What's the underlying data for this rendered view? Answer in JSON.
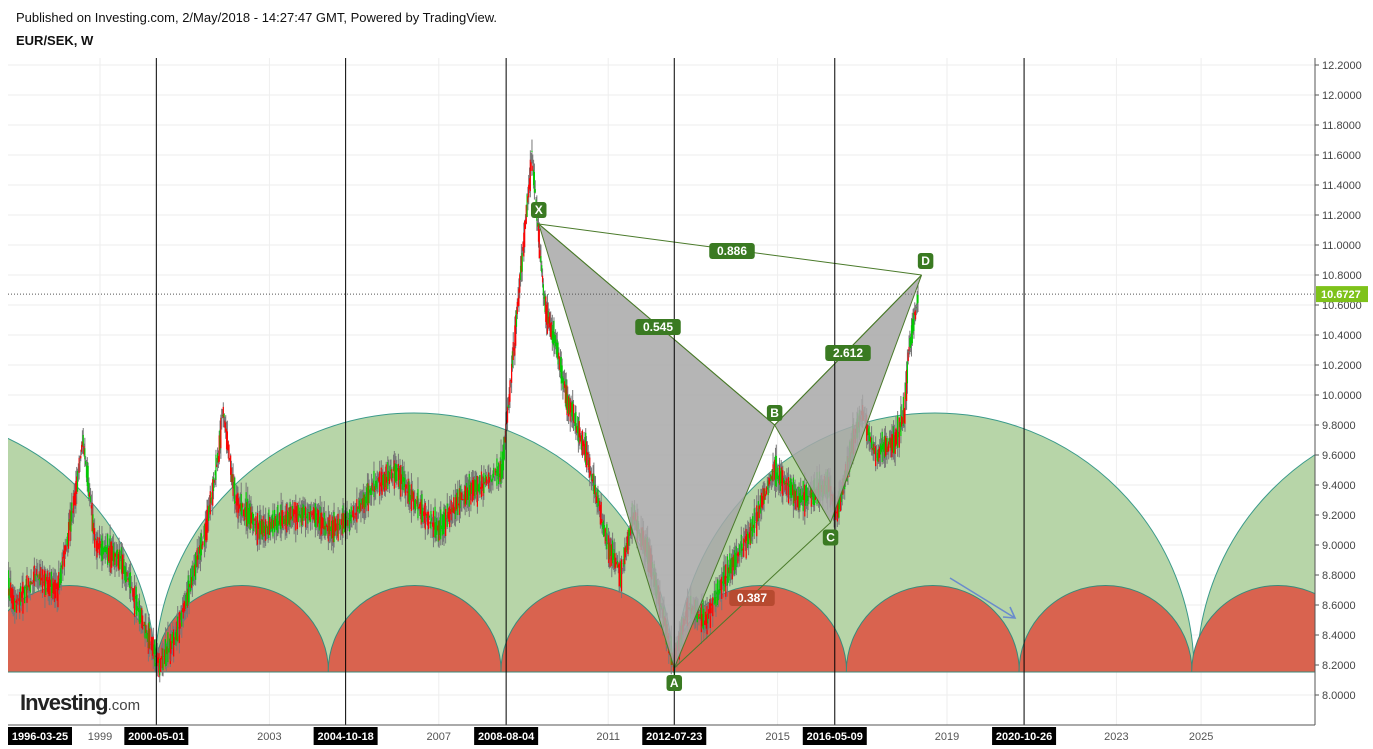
{
  "header": {
    "published": "Published on Investing.com, 2/May/2018 - 14:27:47 GMT, Powered by TradingView.",
    "symbol": "EUR/SEK, W"
  },
  "logo": {
    "main": "Investing",
    "suffix": ".com"
  },
  "colors": {
    "up": "#00cc00",
    "down": "#ff0000",
    "wick": "#777777",
    "green_arc": "#b3d3a3",
    "red_arc": "#d9634f",
    "pattern": "#a8a8a8",
    "label": "#3a7a22",
    "label_red": "#b0452a"
  },
  "chart_data": {
    "type": "candlestick",
    "title": "EUR/SEK, W",
    "ylim": [
      7.9,
      12.25
    ],
    "y_ticks": [
      "12.2000",
      "12.0000",
      "11.8000",
      "11.6000",
      "11.4000",
      "11.2000",
      "11.0000",
      "10.8000",
      "10.6000",
      "10.4000",
      "10.2000",
      "10.0000",
      "9.8000",
      "9.6000",
      "9.4000",
      "9.2000",
      "9.0000",
      "8.8000",
      "8.6000",
      "8.4000",
      "8.2000",
      "8.0000"
    ],
    "x_ticks": [
      {
        "label": "1999",
        "year": 1999
      },
      {
        "label": "2003",
        "year": 2003
      },
      {
        "label": "2007",
        "year": 2007
      },
      {
        "label": "2011",
        "year": 2011
      },
      {
        "label": "2015",
        "year": 2015
      },
      {
        "label": "2019",
        "year": 2019
      },
      {
        "label": "2023",
        "year": 2023
      },
      {
        "label": "2025",
        "year": 2025
      }
    ],
    "cycle_dates": [
      {
        "label": "1996-03-25",
        "year": 1996.23,
        "line": false
      },
      {
        "label": "2000-05-01",
        "year": 2000.33,
        "line": true
      },
      {
        "label": "2004-10-18",
        "year": 2004.8,
        "line": true
      },
      {
        "label": "2008-08-04",
        "year": 2008.59,
        "line": true
      },
      {
        "label": "2012-07-23",
        "year": 2012.56,
        "line": true
      },
      {
        "label": "2016-05-09",
        "year": 2016.35,
        "line": true
      },
      {
        "label": "2020-10-26",
        "year": 2020.82,
        "line": true
      }
    ],
    "last_price": {
      "value": 10.6727,
      "label": "10.6727"
    },
    "price_path": [
      [
        1996.2,
        8.5
      ],
      [
        1996.6,
        8.9
      ],
      [
        1997,
        8.6
      ],
      [
        1997.5,
        8.8
      ],
      [
        1998,
        8.7
      ],
      [
        1998.4,
        9.3
      ],
      [
        1998.6,
        9.7
      ],
      [
        1998.9,
        9.0
      ],
      [
        1999.5,
        8.9
      ],
      [
        2000,
        8.5
      ],
      [
        2000.4,
        8.2
      ],
      [
        2000.8,
        8.4
      ],
      [
        2001.5,
        9.1
      ],
      [
        2001.8,
        9.6
      ],
      [
        2001.9,
        9.9
      ],
      [
        2002.2,
        9.3
      ],
      [
        2002.8,
        9.1
      ],
      [
        2003.5,
        9.2
      ],
      [
        2004,
        9.2
      ],
      [
        2004.5,
        9.1
      ],
      [
        2005,
        9.2
      ],
      [
        2005.5,
        9.4
      ],
      [
        2006,
        9.5
      ],
      [
        2006.4,
        9.3
      ],
      [
        2007,
        9.1
      ],
      [
        2007.5,
        9.3
      ],
      [
        2008,
        9.4
      ],
      [
        2008.5,
        9.5
      ],
      [
        2008.8,
        10.4
      ],
      [
        2009,
        11.0
      ],
      [
        2009.2,
        11.6
      ],
      [
        2009.5,
        10.6
      ],
      [
        2009.8,
        10.3
      ],
      [
        2010,
        10.0
      ],
      [
        2010.5,
        9.6
      ],
      [
        2011,
        9.0
      ],
      [
        2011.3,
        8.8
      ],
      [
        2011.6,
        9.2
      ],
      [
        2012,
        8.9
      ],
      [
        2012.55,
        8.2
      ],
      [
        2012.9,
        8.6
      ],
      [
        2013.3,
        8.5
      ],
      [
        2013.8,
        8.8
      ],
      [
        2014.4,
        9.1
      ],
      [
        2014.9,
        9.5
      ],
      [
        2015.5,
        9.3
      ],
      [
        2016.2,
        9.4
      ],
      [
        2016.4,
        9.2
      ],
      [
        2016.8,
        9.7
      ],
      [
        2017,
        9.9
      ],
      [
        2017.3,
        9.6
      ],
      [
        2017.8,
        9.7
      ],
      [
        2018,
        9.9
      ],
      [
        2018.1,
        10.3
      ],
      [
        2018.33,
        10.67
      ]
    ],
    "harmonic": {
      "points": [
        {
          "label": "X",
          "year": 2009.36,
          "price": 11.14
        },
        {
          "label": "A",
          "year": 2012.56,
          "price": 8.18
        },
        {
          "label": "B",
          "year": 2014.93,
          "price": 9.8
        },
        {
          "label": "C",
          "year": 2016.25,
          "price": 9.15
        },
        {
          "label": "D",
          "year": 2018.4,
          "price": 10.8
        }
      ],
      "ratios": {
        "xb": "0.545",
        "ac": "0.387",
        "bd": "2.612",
        "xd": "0.886"
      }
    }
  }
}
